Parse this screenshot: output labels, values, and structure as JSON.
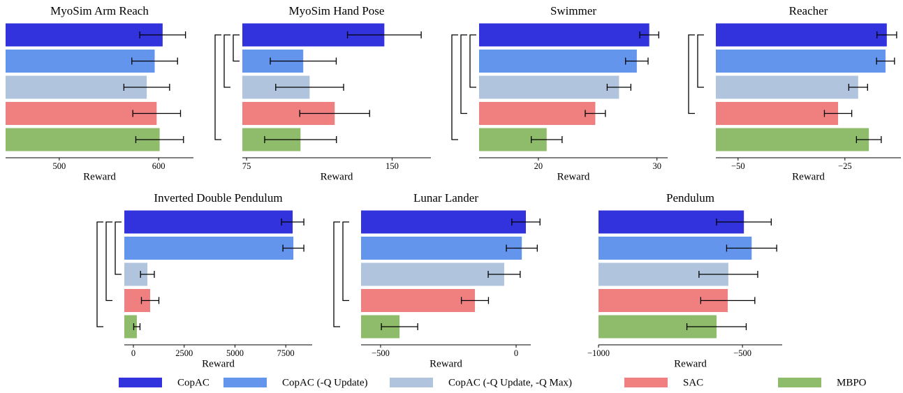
{
  "chart_data": [
    {
      "type": "bar",
      "orientation": "horizontal",
      "title": "MyoSim Arm Reach",
      "xlabel": "Reward",
      "values": [
        604,
        596,
        588,
        598,
        601
      ],
      "errors": [
        23,
        23,
        23,
        24,
        24
      ],
      "xlim": [
        446,
        635
      ],
      "xticks": [
        500,
        600
      ]
    },
    {
      "type": "bar",
      "orientation": "horizontal",
      "title": "MyoSim Hand Pose",
      "xlabel": "Reward",
      "values": [
        146,
        104.2,
        107.5,
        120.4,
        102.8
      ],
      "errors": [
        19,
        17,
        17.5,
        18,
        18.5
      ],
      "xlim": [
        72.8,
        170
      ],
      "xticks": [
        75,
        150
      ]
    },
    {
      "type": "bar",
      "orientation": "horizontal",
      "title": "Swimmer",
      "xlabel": "Reward",
      "values": [
        29.35,
        28.3,
        26.8,
        24.8,
        20.7
      ],
      "errors": [
        0.8,
        0.95,
        1.0,
        0.85,
        1.3
      ],
      "xlim": [
        15,
        30.9
      ],
      "xticks": [
        20,
        30
      ]
    },
    {
      "type": "bar",
      "orientation": "horizontal",
      "title": "Reacher",
      "xlabel": "Reward",
      "values": [
        -15.2,
        -15.5,
        -21.9,
        -26.6,
        -19.4
      ],
      "errors": [
        2.3,
        2.1,
        2.2,
        3.2,
        2.9
      ],
      "xlim": [
        -55.2,
        -11.9
      ],
      "xticks": [
        {
          "value": -50,
          "label": "−50"
        },
        {
          "value": -25,
          "label": "−25"
        }
      ]
    },
    {
      "type": "bar",
      "orientation": "horizontal",
      "title": "Inverted Double Pendulum",
      "xlabel": "Reward",
      "values": [
        7840,
        7875,
        690,
        825,
        170
      ],
      "errors": [
        550,
        515,
        340,
        430,
        155
      ],
      "xlim": [
        -447,
        8800
      ],
      "xticks": [
        0,
        2500,
        5000,
        7500
      ]
    },
    {
      "type": "bar",
      "orientation": "horizontal",
      "title": "Lunar Lander",
      "xlabel": "Reward",
      "values": [
        36,
        21,
        -44,
        -152,
        -430
      ],
      "errors": [
        52,
        57,
        59,
        50,
        67
      ],
      "xlim": [
        -572,
        54
      ],
      "xticks": [
        {
          "value": -500,
          "label": "−500"
        },
        0
      ]
    },
    {
      "type": "bar",
      "orientation": "horizontal",
      "title": "Pendulum",
      "xlabel": "Reward",
      "values": [
        -495,
        -468,
        -549,
        -551,
        -590
      ],
      "errors": [
        95,
        87,
        102,
        94,
        103
      ],
      "xlim": [
        -1000,
        -362
      ],
      "xticks": [
        {
          "value": -1000,
          "label": "−1000"
        },
        {
          "value": -500,
          "label": "−500"
        }
      ]
    }
  ],
  "legend": {
    "names": [
      "CopAC",
      "CopAC (-Q Update)",
      "CopAC (-Q Update, -Q Max)",
      "SAC",
      "MBPO"
    ],
    "colors": [
      "#3333dd",
      "#6495ed",
      "#b0c4de",
      "#f08080",
      "#8fbc6a"
    ]
  }
}
